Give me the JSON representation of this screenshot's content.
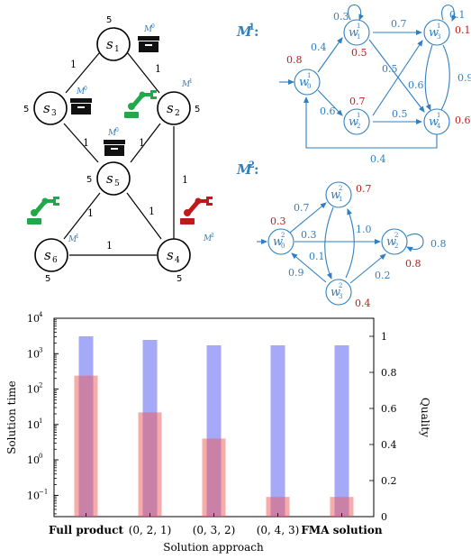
{
  "graph": {
    "nodes": [
      {
        "id": "s1",
        "label": "s",
        "sub": "1",
        "weight": "5"
      },
      {
        "id": "s2",
        "label": "s",
        "sub": "2",
        "weight": "5"
      },
      {
        "id": "s3",
        "label": "s",
        "sub": "3",
        "weight": "5"
      },
      {
        "id": "s4",
        "label": "s",
        "sub": "4",
        "weight": "5"
      },
      {
        "id": "s5",
        "label": "s",
        "sub": "5",
        "weight": "5"
      },
      {
        "id": "s6",
        "label": "s",
        "sub": "6",
        "weight": "5"
      }
    ],
    "edges": [
      {
        "from": "s1",
        "to": "s3",
        "weight": "1"
      },
      {
        "from": "s1",
        "to": "s2",
        "weight": "1"
      },
      {
        "from": "s3",
        "to": "s5",
        "weight": "1"
      },
      {
        "from": "s2",
        "to": "s5",
        "weight": "1"
      },
      {
        "from": "s2",
        "to": "s4",
        "weight": "1"
      },
      {
        "from": "s5",
        "to": "s6",
        "weight": "1"
      },
      {
        "from": "s5",
        "to": "s4",
        "weight": "1"
      },
      {
        "from": "s6",
        "to": "s4",
        "weight": "1"
      }
    ],
    "tags": {
      "s1_box": "M",
      "s1_box_sup": "0",
      "s3_box": "M",
      "s3_box_sup": "0",
      "s5_box": "M",
      "s5_box_sup": "0",
      "s2_robot": "M",
      "s2_robot_sup": "1",
      "s6_robot": "M",
      "s6_robot_sup": "1",
      "s4_robot": "M",
      "s4_robot_sup": "2"
    },
    "colors": {
      "green_robot": "#22a84a",
      "red_robot": "#c0191a",
      "box": "#111111",
      "tag_blue": "#2f7fc1"
    }
  },
  "m1": {
    "title": "M",
    "title_sup": "1",
    "title_suffix": ":",
    "init_prob": "0.8",
    "states": [
      {
        "id": "w0",
        "label": "w",
        "sub": "0",
        "sup": "1"
      },
      {
        "id": "w1",
        "label": "w",
        "sub": "1",
        "sup": "1",
        "prob": "0.5"
      },
      {
        "id": "w2",
        "label": "w",
        "sub": "2",
        "sup": "1",
        "prob": "0.7"
      },
      {
        "id": "w3",
        "label": "w",
        "sub": "3",
        "sup": "1",
        "prob": "0.1"
      },
      {
        "id": "w4",
        "label": "w",
        "sub": "4",
        "sup": "1",
        "prob": "0.6"
      }
    ],
    "transitions": [
      {
        "from": "w1",
        "to": "w1",
        "p": "0.3"
      },
      {
        "from": "w0",
        "to": "w1",
        "p": "0.4"
      },
      {
        "from": "w0",
        "to": "w2",
        "p": "0.6"
      },
      {
        "from": "w1",
        "to": "w3",
        "p": "0.7"
      },
      {
        "from": "w2",
        "to": "w3",
        "p": "0.5"
      },
      {
        "from": "w1",
        "to": "w4",
        "p": "0.6"
      },
      {
        "from": "w2",
        "to": "w4",
        "p": "0.5"
      },
      {
        "from": "w3",
        "to": "w3",
        "p": "0.1"
      },
      {
        "from": "w3",
        "to": "w4",
        "p": "0.9"
      },
      {
        "from": "w4",
        "to": "w0",
        "p": "0.4"
      }
    ],
    "colors": {
      "blue": "#2f7fc1",
      "red": "#c0191a"
    }
  },
  "m2": {
    "title": "M",
    "title_sup": "2",
    "title_suffix": ":",
    "init_prob": "0.3",
    "states": [
      {
        "id": "w0",
        "label": "w",
        "sub": "0",
        "sup": "2"
      },
      {
        "id": "w1",
        "label": "w",
        "sub": "1",
        "sup": "2",
        "prob": "0.7"
      },
      {
        "id": "w2",
        "label": "w",
        "sub": "2",
        "sup": "2",
        "prob": "0.8"
      },
      {
        "id": "w3",
        "label": "w",
        "sub": "3",
        "sup": "2",
        "prob": "0.4"
      }
    ],
    "transitions": [
      {
        "from": "w0",
        "to": "w1",
        "p": "0.7"
      },
      {
        "from": "w0",
        "to": "w2",
        "p": "0.3"
      },
      {
        "from": "w1",
        "to": "w3",
        "p": "1.0"
      },
      {
        "from": "w3",
        "to": "w1",
        "p": "0.1"
      },
      {
        "from": "w3",
        "to": "w0",
        "p": "0.9"
      },
      {
        "from": "w3",
        "to": "w2",
        "p": "0.2"
      },
      {
        "from": "w2",
        "to": "w2",
        "p": "0.8"
      }
    ]
  },
  "chart_data": {
    "type": "bar",
    "categories": [
      "Full product",
      "(0, 2, 1)",
      "(0, 3, 2)",
      "(0, 4, 3)",
      "FMA solution"
    ],
    "series": [
      {
        "name": "Solution time",
        "axis": "left",
        "scale": "log",
        "values": [
          240,
          22,
          4,
          0.09,
          0.09
        ],
        "color": "#f05a5a"
      },
      {
        "name": "Quality",
        "axis": "right",
        "scale": "linear",
        "values": [
          1.0,
          0.98,
          0.95,
          0.95,
          0.95
        ],
        "color": "#5b62f0"
      }
    ],
    "xlabel": "Solution approach",
    "ylabel": "Solution time",
    "y2label": "Quality",
    "ylim": [
      0.025,
      10000
    ],
    "y2lim": [
      0,
      1.1
    ],
    "yticks": [
      {
        "value": 0.1,
        "base": "10",
        "exp": "−1"
      },
      {
        "value": 1,
        "base": "10",
        "exp": "0"
      },
      {
        "value": 10,
        "base": "10",
        "exp": "1"
      },
      {
        "value": 100,
        "base": "10",
        "exp": "2"
      },
      {
        "value": 1000,
        "base": "10",
        "exp": "3"
      },
      {
        "value": 10000,
        "base": "10",
        "exp": "4"
      }
    ],
    "y2ticks": [
      "0",
      "0.2",
      "0.4",
      "0.6",
      "0.8",
      "1"
    ],
    "grid": false
  }
}
